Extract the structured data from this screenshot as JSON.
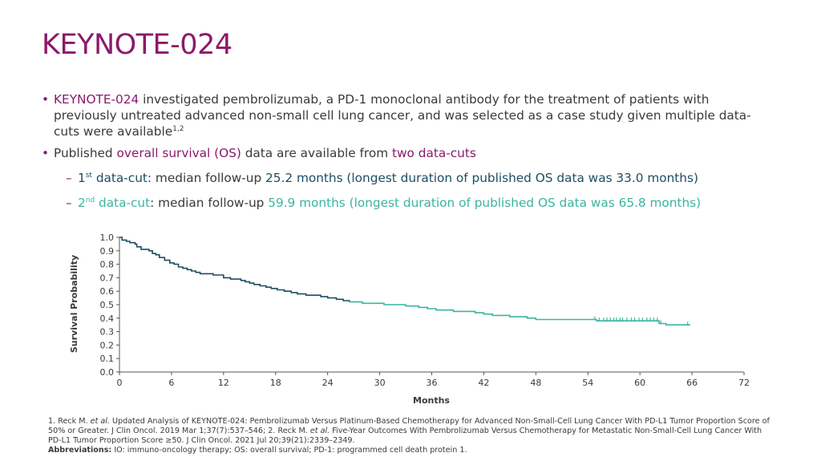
{
  "slide": {
    "title": "KEYNOTE-024"
  },
  "bullets": {
    "b1": {
      "highlight": "KEYNOTE-024",
      "text": " investigated pembrolizumab, a PD-1 monoclonal antibody for the treatment of patients with previously untreated advanced non-small cell lung cancer, and was selected as a case study given multiple data-cuts were available",
      "sup": "1,2"
    },
    "b2": {
      "pre": "Published ",
      "highlight1": "overall survival (OS)",
      "mid": " data are available from ",
      "highlight2": "two data-cuts"
    },
    "sub1": {
      "num": "1",
      "sup": "st",
      "label": " data-cut",
      "mid": ": median follow-up ",
      "value": "25.2 months (longest duration of published OS data was 33.0 months)"
    },
    "sub2": {
      "num": "2",
      "sup": "nd",
      "label": " data-cut",
      "mid": ": median follow-up ",
      "value": "59.9 months (longest duration of published OS data was 65.8 months)"
    }
  },
  "footnotes": {
    "ref1_a": "1. Reck M. ",
    "ref1_etal": "et al.",
    "ref1_b": " Updated Analysis of KEYNOTE-024: Pembrolizumab Versus Platinum-Based Chemotherapy for Advanced Non-Small-Cell Lung Cancer With PD-L1 Tumor Proportion Score of 50% or Greater. J Clin Oncol. 2019 Mar 1;37(7):537–546; 2. Reck M. ",
    "ref2_etal": "et al.",
    "ref2_b": " Five-Year Outcomes With Pembrolizumab Versus Chemotherapy for Metastatic Non-Small-Cell Lung Cancer With PD-L1 Tumor Proportion Score ≥50. J Clin Oncol. 2021 Jul 20;39(21):2339–2349.",
    "abbr_label": "Abbreviations:",
    "abbr_text": " IO: immuno-oncology therapy; OS: overall survival; PD-1: programmed cell death protein 1."
  },
  "colors": {
    "magenta": "#8b1a6b",
    "dark_teal": "#1e4d63",
    "light_teal": "#3bb4a0"
  },
  "chart_data": {
    "type": "line",
    "xlabel": "Months",
    "ylabel": "Survival Probability",
    "xlim": [
      0,
      72
    ],
    "ylim": [
      0,
      1
    ],
    "x_ticks": [
      "0",
      "6",
      "12",
      "18",
      "24",
      "30",
      "36",
      "42",
      "48",
      "54",
      "60",
      "66",
      "72"
    ],
    "y_ticks": [
      "0.0",
      "0.1",
      "0.2",
      "0.3",
      "0.4",
      "0.5",
      "0.6",
      "0.7",
      "0.8",
      "0.9",
      "1.0"
    ],
    "grid": false,
    "series": [
      {
        "color": "#1e4d63",
        "points": [
          [
            0,
            1.0
          ],
          [
            0.3,
            0.98
          ],
          [
            0.8,
            0.97
          ],
          [
            1.2,
            0.96
          ],
          [
            1.8,
            0.95
          ],
          [
            2.0,
            0.93
          ],
          [
            2.5,
            0.91
          ],
          [
            3.0,
            0.91
          ],
          [
            3.4,
            0.9
          ],
          [
            3.8,
            0.88
          ],
          [
            4.2,
            0.87
          ],
          [
            4.6,
            0.85
          ],
          [
            5.2,
            0.83
          ],
          [
            5.8,
            0.81
          ],
          [
            6.3,
            0.8
          ],
          [
            6.8,
            0.78
          ],
          [
            7.3,
            0.77
          ],
          [
            7.8,
            0.76
          ],
          [
            8.3,
            0.75
          ],
          [
            8.8,
            0.74
          ],
          [
            9.3,
            0.73
          ],
          [
            10.0,
            0.73
          ],
          [
            10.8,
            0.72
          ],
          [
            11.5,
            0.72
          ],
          [
            12.0,
            0.7
          ],
          [
            12.8,
            0.69
          ],
          [
            13.5,
            0.69
          ],
          [
            14.0,
            0.68
          ],
          [
            14.5,
            0.67
          ],
          [
            15.0,
            0.66
          ],
          [
            15.5,
            0.65
          ],
          [
            16.2,
            0.64
          ],
          [
            16.9,
            0.63
          ],
          [
            17.5,
            0.62
          ],
          [
            18.2,
            0.61
          ],
          [
            19.0,
            0.6
          ],
          [
            19.8,
            0.59
          ],
          [
            20.5,
            0.58
          ],
          [
            21.5,
            0.57
          ],
          [
            22.5,
            0.57
          ],
          [
            23.2,
            0.56
          ],
          [
            24.0,
            0.55
          ],
          [
            25.0,
            0.54
          ],
          [
            25.8,
            0.53
          ],
          [
            26.5,
            0.52
          ]
        ]
      },
      {
        "color": "#3bb4a0",
        "points": [
          [
            26.5,
            0.52
          ],
          [
            27.5,
            0.52
          ],
          [
            28.0,
            0.51
          ],
          [
            29.5,
            0.51
          ],
          [
            30.5,
            0.5
          ],
          [
            32.0,
            0.5
          ],
          [
            33.0,
            0.49
          ],
          [
            34.5,
            0.48
          ],
          [
            35.5,
            0.47
          ],
          [
            36.5,
            0.46
          ],
          [
            38.0,
            0.46
          ],
          [
            38.5,
            0.45
          ],
          [
            40.0,
            0.45
          ],
          [
            41.0,
            0.44
          ],
          [
            42.0,
            0.43
          ],
          [
            43.0,
            0.42
          ],
          [
            44.0,
            0.42
          ],
          [
            45.0,
            0.41
          ],
          [
            46.0,
            0.41
          ],
          [
            47.0,
            0.4
          ],
          [
            48.0,
            0.39
          ],
          [
            49.0,
            0.39
          ],
          [
            50.0,
            0.39
          ],
          [
            52.0,
            0.39
          ],
          [
            54.0,
            0.39
          ],
          [
            55.0,
            0.38
          ],
          [
            56.0,
            0.38
          ],
          [
            58.0,
            0.38
          ],
          [
            60.0,
            0.38
          ],
          [
            62.0,
            0.38
          ],
          [
            62.2,
            0.36
          ],
          [
            63.0,
            0.35
          ],
          [
            64.0,
            0.35
          ],
          [
            65.0,
            0.35
          ],
          [
            65.8,
            0.35
          ]
        ]
      }
    ],
    "censor_marks": [
      54.8,
      55.3,
      55.8,
      56.2,
      56.6,
      57.0,
      57.3,
      57.7,
      58.0,
      58.5,
      59.0,
      59.4,
      59.9,
      60.3,
      60.8,
      61.2,
      61.6,
      62.0,
      62.4,
      65.5
    ]
  }
}
